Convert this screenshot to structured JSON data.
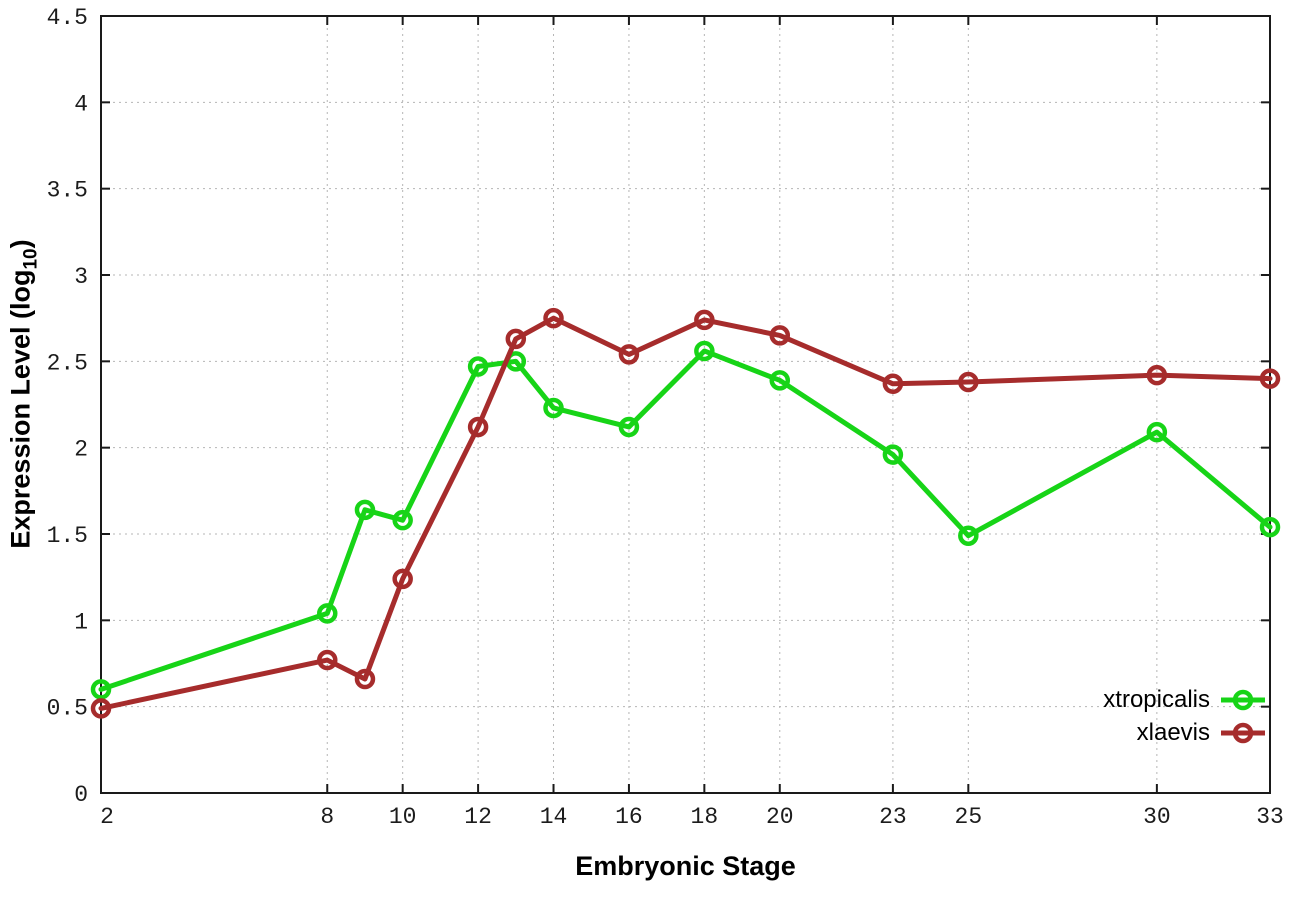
{
  "figure": {
    "background": "#ffffff",
    "xlabel": "Embryonic Stage",
    "ylabel": {
      "main": "Expression Level (log",
      "sub": "10",
      "end": ")"
    }
  },
  "chart_data": {
    "type": "line",
    "title": "",
    "xlabel": "Embryonic Stage",
    "ylabel": "Expression Level (log10)",
    "xlim": [
      2,
      33
    ],
    "ylim": [
      0,
      4.5
    ],
    "grid": true,
    "legend_position": "inside-bottom-right",
    "x_ticks": [
      2,
      8,
      10,
      12,
      14,
      16,
      18,
      20,
      23,
      25,
      30,
      33
    ],
    "y_ticks": [
      0,
      0.5,
      1,
      1.5,
      2,
      2.5,
      3,
      3.5,
      4,
      4.5
    ],
    "x": [
      2,
      8,
      9,
      10,
      12,
      13,
      14,
      16,
      18,
      20,
      23,
      25,
      30,
      33
    ],
    "series": [
      {
        "name": "xtropicalis",
        "color": "#17d417",
        "values": [
          0.6,
          1.04,
          1.64,
          1.58,
          2.47,
          2.5,
          2.23,
          2.12,
          2.56,
          2.39,
          1.96,
          1.49,
          2.09,
          1.54
        ]
      },
      {
        "name": "xlaevis",
        "color": "#a62c2c",
        "values": [
          0.49,
          0.77,
          0.66,
          1.24,
          2.12,
          2.63,
          2.75,
          2.54,
          2.74,
          2.65,
          2.37,
          2.38,
          2.42,
          2.4
        ]
      }
    ],
    "style": {
      "axis_color": "#1a1a1a",
      "grid_color": "#b5b5b5",
      "line_width": 5,
      "marker_radius": 8,
      "marker_stroke": 4.5
    }
  }
}
